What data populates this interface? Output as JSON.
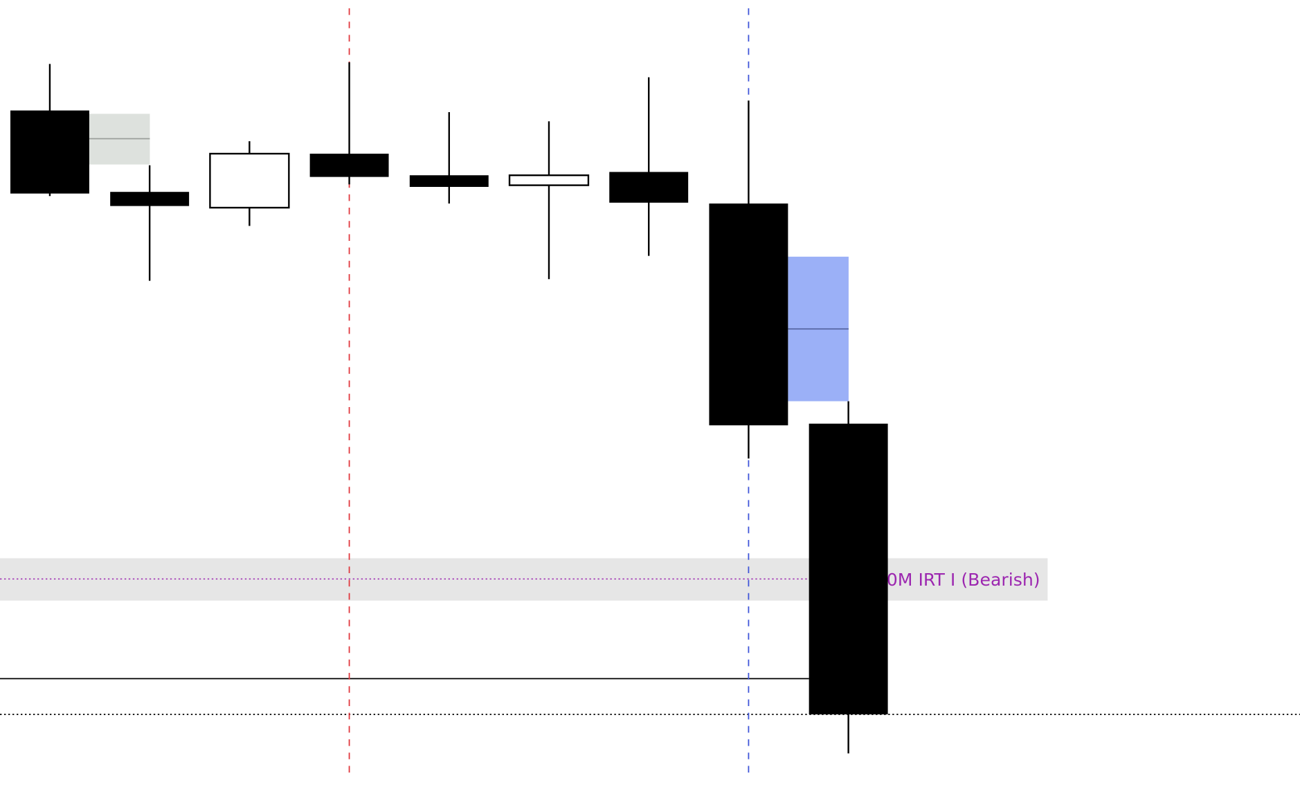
{
  "chart_data": {
    "type": "candlestick",
    "ylim": [
      6.0,
      99.0
    ],
    "grid": false,
    "candles": [
      {
        "open": 86.7,
        "high": 92.3,
        "low": 76.4,
        "close": 76.7
      },
      {
        "open": 76.9,
        "high": 80.1,
        "low": 66.2,
        "close": 75.2
      },
      {
        "open": 75.0,
        "high": 83.0,
        "low": 72.8,
        "close": 81.5
      },
      {
        "open": 81.5,
        "high": 92.5,
        "low": 77.8,
        "close": 78.7
      },
      {
        "open": 78.9,
        "high": 86.5,
        "low": 75.5,
        "close": 77.5
      },
      {
        "open": 77.7,
        "high": 85.4,
        "low": 66.4,
        "close": 78.9
      },
      {
        "open": 79.3,
        "high": 90.7,
        "low": 69.2,
        "close": 75.6
      },
      {
        "open": 75.5,
        "high": 87.9,
        "low": 44.8,
        "close": 48.8
      },
      {
        "open": 49.0,
        "high": 51.7,
        "low": 9.3,
        "close": 14.0
      }
    ],
    "zones": [
      {
        "after_candle": 0,
        "top": 86.3,
        "bottom": 80.2,
        "mid": 83.3,
        "color": "#dde1dd",
        "mid_color": "#9a9e9a"
      },
      {
        "after_candle": 7,
        "top": 69.1,
        "bottom": 51.7,
        "mid": 60.4,
        "color": "#9bb0f7",
        "mid_color": "#5a6aa8"
      }
    ],
    "vertical_lines": [
      {
        "at_candle": 3,
        "color": "#e0383e",
        "style": "dashed"
      },
      {
        "at_candle": 7,
        "color": "#3f55d8",
        "style": "dashed"
      }
    ],
    "level_band": {
      "top": 32.8,
      "bottom": 27.7,
      "level": 30.3,
      "color": "#e6e6e6",
      "line_color": "#9c27b0",
      "label": "0M IRT I (Bearish)",
      "label_color": "#9c27b0"
    },
    "horizontal_lines": [
      {
        "value": 18.3,
        "color": "#000000",
        "style": "solid",
        "to_candle": 8
      },
      {
        "value": 14.0,
        "color": "#000000",
        "style": "dotted"
      }
    ],
    "bullish_color": "#ffffff",
    "bearish_color": "#000000"
  }
}
